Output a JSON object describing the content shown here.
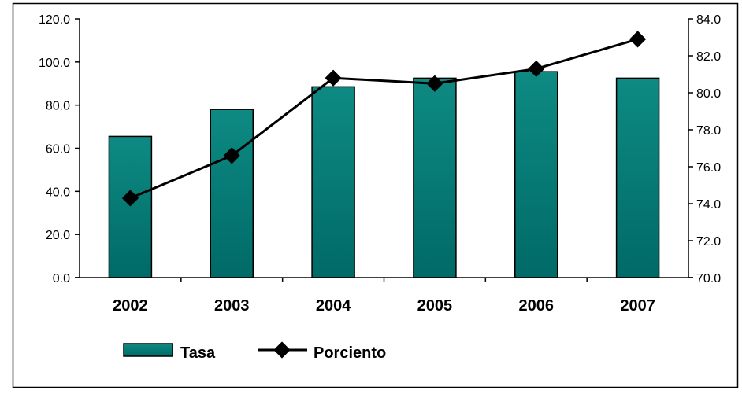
{
  "chart_data": {
    "type": "bar",
    "categories": [
      "2002",
      "2003",
      "2004",
      "2005",
      "2006",
      "2007"
    ],
    "series": [
      {
        "name": "Tasa",
        "type": "bar",
        "axis": "left",
        "values": [
          65.5,
          78.0,
          88.5,
          92.5,
          95.5,
          92.5
        ]
      },
      {
        "name": "Porciento",
        "type": "line",
        "axis": "right",
        "values": [
          74.3,
          76.6,
          80.8,
          80.5,
          81.3,
          82.9
        ]
      }
    ],
    "y_left": {
      "ylim": [
        0,
        120
      ],
      "ticks": [
        "0.0",
        "20.0",
        "40.0",
        "60.0",
        "80.0",
        "100.0",
        "120.0"
      ]
    },
    "y_right": {
      "ylim": [
        70,
        84
      ],
      "ticks": [
        "70.0",
        "72.0",
        "74.0",
        "76.0",
        "78.0",
        "80.0",
        "82.0",
        "84.0"
      ]
    },
    "title": "",
    "xlabel": "",
    "ylabel": "",
    "grid": false,
    "legend": "bottom-left",
    "colors": {
      "bar": "#0e8079",
      "bar_dark": "#006e6b",
      "line": "#000000",
      "axis": "#000000"
    }
  }
}
